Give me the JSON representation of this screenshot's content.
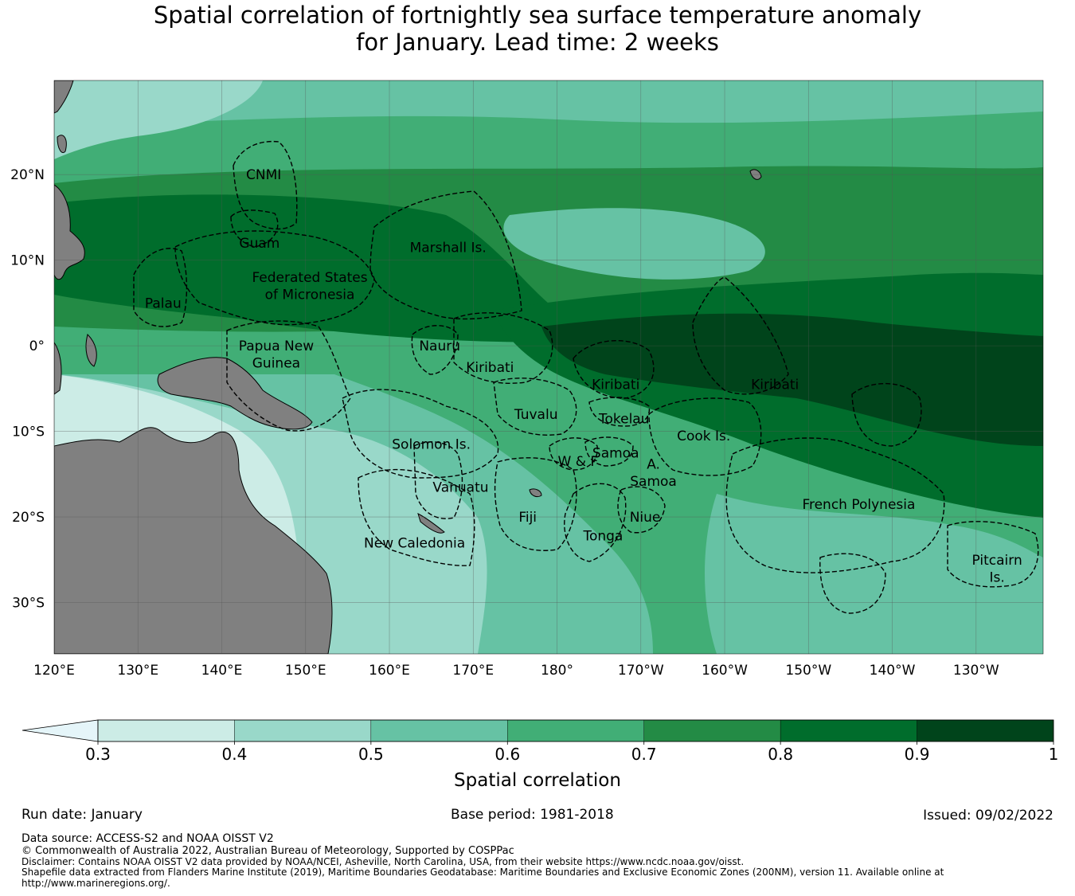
{
  "title": {
    "line1": "Spatial correlation of fortnightly sea surface temperature anomaly",
    "line2": "for January. Lead time: 2 weeks"
  },
  "map": {
    "lon_range": [
      120,
      238
    ],
    "lat_range": [
      -36,
      31
    ],
    "lat_ticks": [
      {
        "value": 20,
        "label": "20°N"
      },
      {
        "value": 10,
        "label": "10°N"
      },
      {
        "value": 0,
        "label": "0°"
      },
      {
        "value": -10,
        "label": "10°S"
      },
      {
        "value": -20,
        "label": "20°S"
      },
      {
        "value": -30,
        "label": "30°S"
      }
    ],
    "lon_ticks": [
      {
        "value": 120,
        "label": "120°E"
      },
      {
        "value": 130,
        "label": "130°E"
      },
      {
        "value": 140,
        "label": "140°E"
      },
      {
        "value": 150,
        "label": "150°E"
      },
      {
        "value": 160,
        "label": "160°E"
      },
      {
        "value": 170,
        "label": "170°E"
      },
      {
        "value": 180,
        "label": "180°"
      },
      {
        "value": 190,
        "label": "170°W"
      },
      {
        "value": 200,
        "label": "160°W"
      },
      {
        "value": 210,
        "label": "150°W"
      },
      {
        "value": 220,
        "label": "140°W"
      },
      {
        "value": 230,
        "label": "130°W"
      }
    ],
    "region_labels": [
      {
        "name": "CNMI",
        "lon": 145,
        "lat": 20
      },
      {
        "name": "Guam",
        "lon": 144.5,
        "lat": 12
      },
      {
        "name": "Marshall Is.",
        "lon": 167,
        "lat": 11.5
      },
      {
        "name": "Federated States",
        "lon": 150.5,
        "lat": 8
      },
      {
        "name": "of Micronesia",
        "lon": 150.5,
        "lat": 6
      },
      {
        "name": "Palau",
        "lon": 133,
        "lat": 5
      },
      {
        "name": "Papua New",
        "lon": 146.5,
        "lat": 0
      },
      {
        "name": "Guinea",
        "lon": 146.5,
        "lat": -2
      },
      {
        "name": "Nauru",
        "lon": 166,
        "lat": 0
      },
      {
        "name": "Kiribati",
        "lon": 172,
        "lat": -2.5
      },
      {
        "name": "Kiribati",
        "lon": 187,
        "lat": -4.5
      },
      {
        "name": "Kiribati",
        "lon": 206,
        "lat": -4.5
      },
      {
        "name": "Tuvalu",
        "lon": 177.5,
        "lat": -8
      },
      {
        "name": "Tokelau",
        "lon": 188,
        "lat": -8.5
      },
      {
        "name": "Cook Is.",
        "lon": 197.5,
        "lat": -10.5
      },
      {
        "name": "Solomon Is.",
        "lon": 165,
        "lat": -11.5
      },
      {
        "name": "Samoa",
        "lon": 187,
        "lat": -12.5
      },
      {
        "name": "W & F",
        "lon": 182.5,
        "lat": -13.5
      },
      {
        "name": "A.",
        "lon": 191.5,
        "lat": -13.8
      },
      {
        "name": "Samoa",
        "lon": 191.5,
        "lat": -15.8
      },
      {
        "name": "Vanuatu",
        "lon": 168.5,
        "lat": -16.5
      },
      {
        "name": "French Polynesia",
        "lon": 216,
        "lat": -18.5
      },
      {
        "name": "Fiji",
        "lon": 176.5,
        "lat": -20
      },
      {
        "name": "Niue",
        "lon": 190.5,
        "lat": -20
      },
      {
        "name": "Tonga",
        "lon": 185.5,
        "lat": -22.2
      },
      {
        "name": "New Caledonia",
        "lon": 163,
        "lat": -23
      },
      {
        "name": "Pitcairn",
        "lon": 232.5,
        "lat": -25
      },
      {
        "name": "Is.",
        "lon": 232.5,
        "lat": -27
      }
    ]
  },
  "colorbar": {
    "title": "Spatial correlation",
    "bins": [
      {
        "lo": 0.3,
        "hi": 0.4,
        "color": "#ccece6"
      },
      {
        "lo": 0.4,
        "hi": 0.5,
        "color": "#99d8c9"
      },
      {
        "lo": 0.5,
        "hi": 0.6,
        "color": "#66c2a4"
      },
      {
        "lo": 0.6,
        "hi": 0.7,
        "color": "#41ae76"
      },
      {
        "lo": 0.7,
        "hi": 0.8,
        "color": "#238b45"
      },
      {
        "lo": 0.8,
        "hi": 0.9,
        "color": "#006d2c"
      },
      {
        "lo": 0.9,
        "hi": 1.0,
        "color": "#00441b"
      }
    ],
    "extend_color": "#e5f5f9",
    "tick_labels": [
      "0.3",
      "0.4",
      "0.5",
      "0.6",
      "0.7",
      "0.8",
      "0.9",
      "1"
    ]
  },
  "colors": {
    "land": "#808080",
    "ocean_base": "#41ae76"
  },
  "footer": {
    "run_date": "Run date: January",
    "base_period": "Base period: 1981-2018",
    "issued": "Issued: 09/02/2022",
    "data_source": "Data source: ACCESS-S2 and NOAA OISST V2",
    "copyright": "© Commonwealth of Australia 2022, Australian Bureau of Meteorology, Supported by COSPPac",
    "disclaimer": "Disclaimer: Contains NOAA OISST V2 data provided by NOAA/NCEI, Asheville, North Carolina, USA, from their website https://www.ncdc.noaa.gov/oisst.",
    "shapefile_1": "Shapefile data extracted from Flanders Marine Institute (2019), Maritime Boundaries Geodatabase: Maritime Boundaries and Exclusive Economic Zones (200NM), version 11. Available online at",
    "shapefile_2": "http://www.marineregions.org/."
  }
}
